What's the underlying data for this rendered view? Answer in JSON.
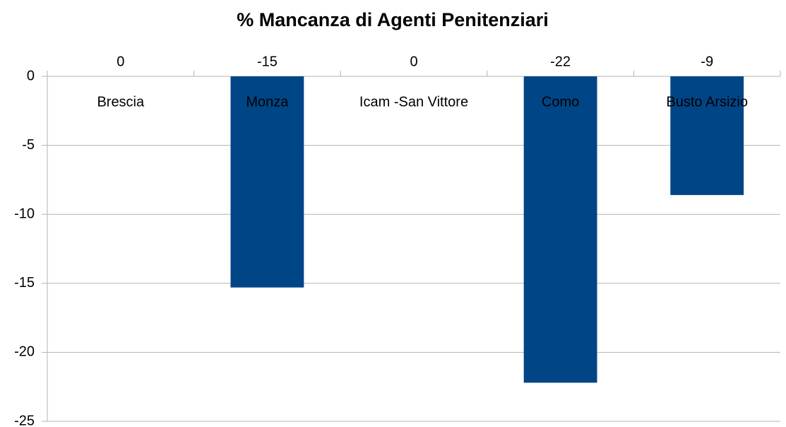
{
  "chart_data": {
    "type": "bar",
    "title": "% Mancanza di Agenti Penitenziari",
    "categories": [
      "Brescia",
      "Monza",
      "Icam -San Vittore",
      "Como",
      "Busto Arsizio"
    ],
    "values": [
      0,
      -15.3,
      0,
      -22.2,
      -8.6
    ],
    "value_labels": [
      "0",
      "-15",
      "0",
      "-22",
      "-9"
    ],
    "color": "#004586",
    "ylim": [
      -25,
      0
    ],
    "yticks": [
      0,
      -5,
      -10,
      -15,
      -20,
      -25
    ],
    "grid": true
  }
}
